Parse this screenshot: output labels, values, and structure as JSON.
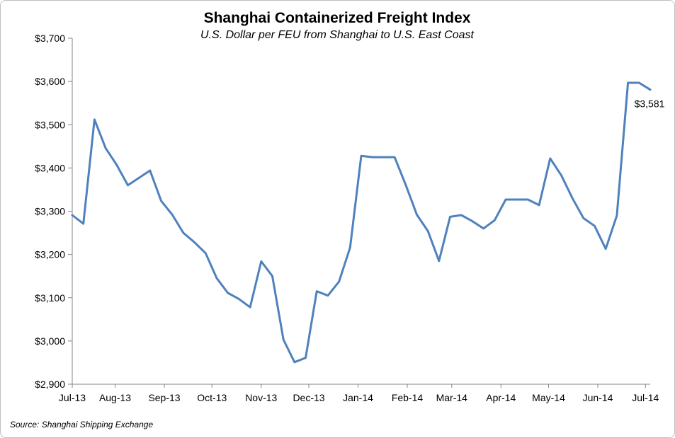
{
  "chart_data": {
    "type": "line",
    "title": "Shanghai Containerized Freight Index",
    "subtitle": "U.S. Dollar per FEU from Shanghai to U.S. East Coast",
    "xlabel": "",
    "ylabel": "",
    "source": "Source: Shanghai Shipping Exchange",
    "ylim": [
      2900,
      3700
    ],
    "y_ticks": [
      2900,
      3000,
      3100,
      3200,
      3300,
      3400,
      3500,
      3600,
      3700
    ],
    "y_tick_labels": [
      "$2,900",
      "$3,000",
      "$3,100",
      "$3,200",
      "$3,300",
      "$3,400",
      "$3,500",
      "$3,600",
      "$3,700"
    ],
    "x_tick_labels": [
      "Jul-13",
      "Aug-13",
      "Sep-13",
      "Oct-13",
      "Nov-13",
      "Dec-13",
      "Jan-14",
      "Feb-14",
      "Mar-14",
      "Apr-14",
      "May-14",
      "Jun-14",
      "Jul-14"
    ],
    "grid": false,
    "line_color": "#4f81bd",
    "series": [
      {
        "x": [
          "2013-07-05",
          "2013-07-12",
          "2013-07-19",
          "2013-07-26",
          "2013-08-02",
          "2013-08-09",
          "2013-08-16",
          "2013-08-23",
          "2013-08-30",
          "2013-09-06",
          "2013-09-13",
          "2013-09-20",
          "2013-09-27",
          "2013-10-04",
          "2013-10-11",
          "2013-10-18",
          "2013-10-25",
          "2013-11-01",
          "2013-11-08",
          "2013-11-15",
          "2013-11-22",
          "2013-11-29",
          "2013-12-06",
          "2013-12-13",
          "2013-12-20",
          "2013-12-27",
          "2014-01-03",
          "2014-01-10",
          "2014-01-17",
          "2014-01-24",
          "2014-01-31",
          "2014-02-07",
          "2014-02-14",
          "2014-02-21",
          "2014-02-28",
          "2014-03-07",
          "2014-03-14",
          "2014-03-21",
          "2014-03-28",
          "2014-04-04",
          "2014-04-11",
          "2014-04-18",
          "2014-04-25",
          "2014-05-02",
          "2014-05-09",
          "2014-05-16",
          "2014-05-23",
          "2014-05-30",
          "2014-06-06",
          "2014-06-13",
          "2014-06-20",
          "2014-06-27",
          "2014-07-04"
        ],
        "values": [
          3291,
          3271,
          3512,
          3446,
          3407,
          3360,
          3377,
          3394,
          3324,
          3292,
          3250,
          3228,
          3203,
          3145,
          3111,
          3097,
          3078,
          3184,
          3150,
          3003,
          2951,
          2961,
          3115,
          3105,
          3137,
          3216,
          3428,
          3425,
          3425,
          3425,
          3361,
          3292,
          3254,
          3185,
          3287,
          3291,
          3277,
          3260,
          3279,
          3327,
          3327,
          3327,
          3314,
          3422,
          3383,
          3330,
          3284,
          3266,
          3213,
          3290,
          3597,
          3597,
          3581
        ]
      }
    ],
    "data_labels": [
      {
        "index": 52,
        "text": "$3,581"
      }
    ]
  }
}
